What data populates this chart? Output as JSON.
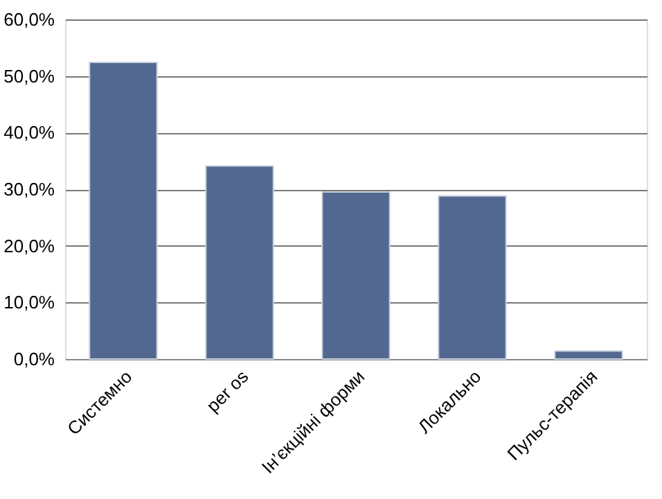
{
  "chart_data": {
    "type": "bar",
    "categories": [
      "Системно",
      "per os",
      "Ін’єкційні форми",
      "Локально",
      "Пульс-терапія"
    ],
    "values": [
      52.4,
      34.1,
      29.5,
      28.8,
      1.4
    ],
    "color": "#536890",
    "ylim": [
      0,
      60
    ],
    "yticks": [
      {
        "value": 0,
        "label": "0,0%"
      },
      {
        "value": 10,
        "label": "10,0%"
      },
      {
        "value": 20,
        "label": "20,0%"
      },
      {
        "value": 30,
        "label": "30,0%"
      },
      {
        "value": 40,
        "label": "40,0%"
      },
      {
        "value": 50,
        "label": "50,0%"
      },
      {
        "value": 60,
        "label": "60,0%"
      }
    ],
    "grid": "y"
  }
}
